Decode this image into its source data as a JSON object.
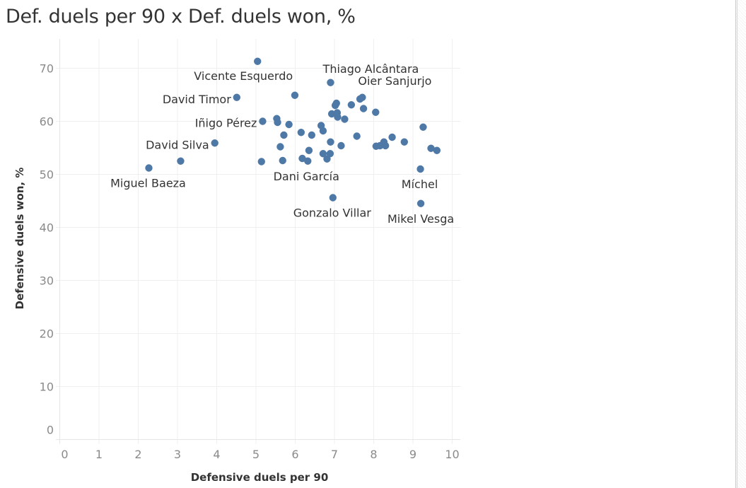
{
  "title": "Def. duels per 90 x Def. duels won, %",
  "colors": {
    "point": "#4E79A7",
    "grid": "#EFEFEF",
    "tick_text": "#8A8A8A",
    "label_text": "#333333"
  },
  "chart_data": {
    "type": "scatter",
    "title": "Def. duels per 90 x Def. duels won, %",
    "xlabel": "Defensive duels per 90",
    "ylabel": "Defensive duels won, %",
    "xlim": [
      0,
      10
    ],
    "ylim": [
      0,
      75
    ],
    "xticks": [
      "0",
      "1",
      "2",
      "3",
      "4",
      "5",
      "6",
      "7",
      "8",
      "9",
      "10"
    ],
    "yticks": [
      "0",
      "10",
      "20",
      "30",
      "40",
      "50",
      "60",
      "70"
    ],
    "grid": true,
    "points": [
      {
        "x": 5.04,
        "y": 71.3,
        "label": "Vicente Esquerdo"
      },
      {
        "x": 6.9,
        "y": 67.3,
        "label": "Thiago Alcântara"
      },
      {
        "x": 7.71,
        "y": 64.5,
        "label": "Oier Sanjurjo"
      },
      {
        "x": 4.51,
        "y": 64.5,
        "label": "David Timor"
      },
      {
        "x": 5.17,
        "y": 60.0,
        "label": "Iñigo Pérez"
      },
      {
        "x": 3.95,
        "y": 55.9,
        "label": "David Silva"
      },
      {
        "x": 2.27,
        "y": 51.2,
        "label": "Miguel Baeza"
      },
      {
        "x": 6.32,
        "y": 52.5,
        "label": "Dani García"
      },
      {
        "x": 6.96,
        "y": 45.6,
        "label": "Gonzalo Villar"
      },
      {
        "x": 9.19,
        "y": 51.0,
        "label": "Míchel"
      },
      {
        "x": 9.2,
        "y": 44.5,
        "label": "Mikel Vesga"
      },
      {
        "x": 3.08,
        "y": 52.5
      },
      {
        "x": 5.14,
        "y": 52.4
      },
      {
        "x": 5.99,
        "y": 64.9
      },
      {
        "x": 7.02,
        "y": 63.0
      },
      {
        "x": 7.05,
        "y": 63.4
      },
      {
        "x": 7.43,
        "y": 63.1
      },
      {
        "x": 7.65,
        "y": 64.2
      },
      {
        "x": 7.74,
        "y": 62.4
      },
      {
        "x": 8.05,
        "y": 61.7
      },
      {
        "x": 6.93,
        "y": 61.4
      },
      {
        "x": 7.07,
        "y": 61.6
      },
      {
        "x": 7.08,
        "y": 60.8
      },
      {
        "x": 7.26,
        "y": 60.4
      },
      {
        "x": 5.53,
        "y": 60.5
      },
      {
        "x": 5.55,
        "y": 59.8
      },
      {
        "x": 5.84,
        "y": 59.4
      },
      {
        "x": 5.71,
        "y": 57.4
      },
      {
        "x": 5.62,
        "y": 55.2
      },
      {
        "x": 5.68,
        "y": 52.6
      },
      {
        "x": 6.15,
        "y": 57.9
      },
      {
        "x": 6.42,
        "y": 57.4
      },
      {
        "x": 6.35,
        "y": 54.5
      },
      {
        "x": 6.18,
        "y": 53.0
      },
      {
        "x": 6.66,
        "y": 59.2
      },
      {
        "x": 6.71,
        "y": 58.2
      },
      {
        "x": 6.9,
        "y": 56.1
      },
      {
        "x": 6.71,
        "y": 53.9
      },
      {
        "x": 6.89,
        "y": 53.9
      },
      {
        "x": 6.81,
        "y": 52.9
      },
      {
        "x": 7.17,
        "y": 55.4
      },
      {
        "x": 7.57,
        "y": 57.2
      },
      {
        "x": 9.26,
        "y": 58.9
      },
      {
        "x": 8.47,
        "y": 57.0
      },
      {
        "x": 8.78,
        "y": 56.1
      },
      {
        "x": 8.06,
        "y": 55.3
      },
      {
        "x": 8.16,
        "y": 55.4
      },
      {
        "x": 8.26,
        "y": 56.1
      },
      {
        "x": 8.3,
        "y": 55.4
      },
      {
        "x": 9.46,
        "y": 54.9
      },
      {
        "x": 9.61,
        "y": 54.5
      }
    ]
  }
}
